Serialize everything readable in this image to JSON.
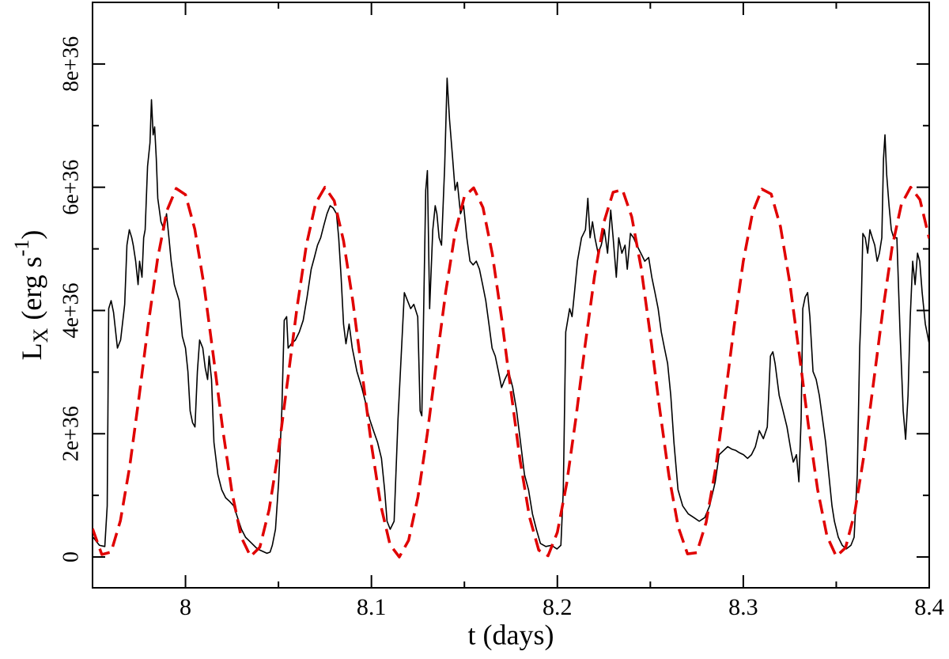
{
  "chart_data": {
    "type": "line",
    "xlabel": "t (days)",
    "ylabel": {
      "text": "L",
      "subscript": "X",
      "unit": "(erg s",
      "superscript": "-1",
      "close": ")"
    },
    "xlim": [
      7.95,
      8.4
    ],
    "xticks": [
      8,
      8.1,
      8.2,
      8.3,
      8.4
    ],
    "xminorticks": [
      8.05,
      8.15,
      8.25,
      8.35
    ],
    "ylim": [
      -5e+35,
      9e+36
    ],
    "yticks": [
      0,
      {
        "value": 2e+36,
        "label": "2e+36"
      },
      {
        "value": 4e+36,
        "label": "4e+36"
      },
      {
        "value": 6e+36,
        "label": "6e+36"
      },
      {
        "value": 8e+36,
        "label": "8e+36"
      }
    ],
    "yminorticks": [
      1e+36,
      3e+36,
      5e+36,
      7e+36
    ],
    "series": [
      {
        "color": "#000000",
        "style": "solid",
        "x": [
          7.9503,
          7.9537,
          7.9566,
          7.9579,
          7.9587,
          7.96,
          7.9613,
          7.9634,
          7.9651,
          7.9673,
          7.9685,
          7.9698,
          7.9711,
          7.9719,
          7.9732,
          7.9745,
          7.9753,
          7.9766,
          7.9775,
          7.9783,
          7.9796,
          7.9809,
          7.9817,
          7.9826,
          7.9834,
          7.9843,
          7.9851,
          7.9868,
          7.9885,
          7.9898,
          7.9911,
          7.9923,
          7.994,
          7.9966,
          7.9983,
          8.0,
          8.0013,
          8.0025,
          8.0038,
          8.0051,
          8.0064,
          8.0076,
          8.0093,
          8.0106,
          8.0119,
          8.0127,
          8.014,
          8.0153,
          8.0174,
          8.0195,
          8.0216,
          8.0238,
          8.0259,
          8.028,
          8.0301,
          8.0323,
          8.0357,
          8.0387,
          8.0416,
          8.0438,
          8.0455,
          8.0467,
          8.0484,
          8.0501,
          8.0518,
          8.0531,
          8.0544,
          8.0552,
          8.0569,
          8.0591,
          8.0612,
          8.0633,
          8.0654,
          8.0676,
          8.0693,
          8.071,
          8.0727,
          8.0744,
          8.0761,
          8.0778,
          8.0795,
          8.0812,
          8.0824,
          8.0837,
          8.085,
          8.0863,
          8.088,
          8.0897,
          8.0922,
          8.0948,
          8.0969,
          8.099,
          8.1011,
          8.1033,
          8.1054,
          8.1071,
          8.1084,
          8.1101,
          8.1122,
          8.1143,
          8.116,
          8.1177,
          8.1194,
          8.1211,
          8.1228,
          8.1249,
          8.1262,
          8.1271,
          8.1279,
          8.1292,
          8.1301,
          8.1313,
          8.133,
          8.1343,
          8.1352,
          8.1364,
          8.1377,
          8.1394,
          8.1407,
          8.142,
          8.1437,
          8.145,
          8.1462,
          8.1479,
          8.1496,
          8.1513,
          8.153,
          8.1547,
          8.1564,
          8.1581,
          8.1598,
          8.1615,
          8.1632,
          8.1649,
          8.1666,
          8.1683,
          8.17,
          8.1717,
          8.1738,
          8.176,
          8.1781,
          8.1802,
          8.1823,
          8.1845,
          8.1866,
          8.1887,
          8.1909,
          8.1938,
          8.1968,
          8.1998,
          8.2019,
          8.2032,
          8.2045,
          8.2066,
          8.2079,
          8.2092,
          8.2108,
          8.213,
          8.2151,
          8.2164,
          8.2176,
          8.2189,
          8.2202,
          8.2219,
          8.2236,
          8.2253,
          8.227,
          8.2287,
          8.23,
          8.2317,
          8.233,
          8.2347,
          8.2364,
          8.2376,
          8.2393,
          8.241,
          8.2427,
          8.2449,
          8.247,
          8.2491,
          8.2508,
          8.2525,
          8.2542,
          8.2559,
          8.2576,
          8.2593,
          8.261,
          8.2627,
          8.2649,
          8.2674,
          8.2704,
          8.2734,
          8.2763,
          8.2793,
          8.2819,
          8.2849,
          8.287,
          8.2895,
          8.2916,
          8.2938,
          8.2959,
          8.298,
          8.3001,
          8.3023,
          8.3044,
          8.3065,
          8.3086,
          8.3108,
          8.3129,
          8.3146,
          8.3159,
          8.3171,
          8.3193,
          8.3214,
          8.3235,
          8.3256,
          8.3269,
          8.3286,
          8.3299,
          8.3311,
          8.332,
          8.3333,
          8.3346,
          8.3358,
          8.3375,
          8.3392,
          8.3409,
          8.3426,
          8.3443,
          8.346,
          8.3477,
          8.349,
          8.3511,
          8.3532,
          8.3554,
          8.3579,
          8.3596,
          8.3613,
          8.3626,
          8.3634,
          8.3643,
          8.3656,
          8.3669,
          8.3681,
          8.3694,
          8.3707,
          8.372,
          8.3732,
          8.3745,
          8.3754,
          8.3762,
          8.3771,
          8.3784,
          8.3796,
          8.3809,
          8.3826,
          8.3843,
          8.386,
          8.3873,
          8.3886,
          8.3898,
          8.3911,
          8.3924,
          8.3937,
          8.3949,
          8.3962,
          8.3979,
          8.4
        ],
        "values": [
          3.2e+35,
          1.9e+35,
          1.7e+35,
          8.3e+35,
          4.03e+36,
          4.16e+36,
          3.97e+36,
          3.39e+36,
          3.52e+36,
          4.1e+36,
          5.06e+36,
          5.31e+36,
          5.18e+36,
          5.06e+36,
          4.8e+36,
          4.42e+36,
          4.8e+36,
          4.54e+36,
          5.18e+36,
          5.31e+36,
          6.34e+36,
          6.72e+36,
          7.42e+36,
          6.85e+36,
          6.98e+36,
          6.46e+36,
          5.82e+36,
          5.44e+36,
          5.31e+36,
          5.57e+36,
          5.18e+36,
          4.8e+36,
          4.42e+36,
          4.16e+36,
          3.58e+36,
          3.39e+36,
          3.01e+36,
          2.37e+36,
          2.18e+36,
          2.11e+36,
          3.01e+36,
          3.52e+36,
          3.39e+36,
          3.07e+36,
          2.88e+36,
          3.26e+36,
          2.88e+36,
          1.86e+36,
          1.34e+36,
          1.09e+36,
          9.6e+35,
          9e+35,
          8.3e+35,
          6.4e+35,
          4.5e+35,
          3.2e+35,
          2.2e+35,
          1.3e+35,
          9e+34,
          6e+34,
          8e+34,
          1.9e+35,
          4.5e+35,
          1.22e+36,
          2.37e+36,
          3.84e+36,
          3.9e+36,
          3.39e+36,
          3.46e+36,
          3.52e+36,
          3.65e+36,
          3.84e+36,
          4.22e+36,
          4.67e+36,
          4.86e+36,
          5.06e+36,
          5.18e+36,
          5.38e+36,
          5.57e+36,
          5.7e+36,
          5.66e+36,
          5.57e+36,
          5.18e+36,
          4.54e+36,
          3.78e+36,
          3.46e+36,
          3.78e+36,
          3.39e+36,
          3.01e+36,
          2.75e+36,
          2.5e+36,
          2.24e+36,
          2.05e+36,
          1.86e+36,
          1.6e+36,
          1.09e+36,
          5.8e+35,
          4.5e+35,
          5.8e+35,
          2.24e+36,
          3.26e+36,
          4.29e+36,
          4.16e+36,
          4.03e+36,
          4.1e+36,
          3.9e+36,
          2.37e+36,
          2.29e+36,
          3.65e+36,
          5.95e+36,
          6.27e+36,
          4.03e+36,
          5.31e+36,
          5.7e+36,
          5.57e+36,
          5.18e+36,
          5.06e+36,
          6.34e+36,
          7.77e+36,
          7.1e+36,
          6.46e+36,
          5.95e+36,
          6.08e+36,
          5.57e+36,
          5.7e+36,
          5.18e+36,
          4.8e+36,
          4.74e+36,
          4.8e+36,
          4.67e+36,
          4.42e+36,
          4.16e+36,
          3.78e+36,
          3.39e+36,
          3.26e+36,
          3.01e+36,
          2.75e+36,
          2.88e+36,
          3.01e+36,
          2.75e+36,
          2.37e+36,
          1.86e+36,
          1.34e+36,
          1.09e+36,
          7e+35,
          4.5e+35,
          2.2e+35,
          1.7e+35,
          1.9e+35,
          1.3e+35,
          1.9e+35,
          1.09e+36,
          3.65e+36,
          4.03e+36,
          3.9e+36,
          4.29e+36,
          4.8e+36,
          5.18e+36,
          5.31e+36,
          5.82e+36,
          5.18e+36,
          5.44e+36,
          5.18e+36,
          4.93e+36,
          5.06e+36,
          5.31e+36,
          4.93e+36,
          5.63e+36,
          5.18e+36,
          4.54e+36,
          5.18e+36,
          4.93e+36,
          5.06e+36,
          4.67e+36,
          5.25e+36,
          5.18e+36,
          5.06e+36,
          4.93e+36,
          4.8e+36,
          4.86e+36,
          4.54e+36,
          4.29e+36,
          4.03e+36,
          3.65e+36,
          3.39e+36,
          3.14e+36,
          2.62e+36,
          1.86e+36,
          1.09e+36,
          8.3e+35,
          7e+35,
          6.4e+35,
          5.8e+35,
          6.4e+35,
          8.3e+35,
          1.22e+36,
          1.66e+36,
          1.73e+36,
          1.79e+36,
          1.75e+36,
          1.73e+36,
          1.69e+36,
          1.66e+36,
          1.6e+36,
          1.66e+36,
          1.79e+36,
          2.05e+36,
          1.92e+36,
          2.11e+36,
          3.26e+36,
          3.33e+36,
          3.14e+36,
          2.62e+36,
          2.37e+36,
          2.11e+36,
          1.73e+36,
          1.54e+36,
          1.66e+36,
          1.22e+36,
          2.24e+36,
          4.03e+36,
          4.22e+36,
          4.29e+36,
          3.9e+36,
          3.01e+36,
          2.88e+36,
          2.62e+36,
          2.24e+36,
          1.86e+36,
          1.34e+36,
          8.3e+35,
          5.8e+35,
          3.2e+35,
          1.9e+35,
          1.3e+35,
          1.9e+35,
          3.2e+35,
          1.34e+36,
          3.39e+36,
          4.03e+36,
          5.25e+36,
          5.18e+36,
          4.93e+36,
          5.31e+36,
          5.18e+36,
          5.06e+36,
          4.8e+36,
          4.93e+36,
          5.18e+36,
          6.46e+36,
          6.85e+36,
          6.21e+36,
          5.7e+36,
          5.31e+36,
          5.18e+36,
          5.18e+36,
          3.65e+36,
          2.37e+36,
          1.91e+36,
          2.62e+36,
          3.9e+36,
          4.8e+36,
          4.42e+36,
          4.93e+36,
          4.8e+36,
          4.29e+36,
          3.78e+36,
          3.46e+36
        ]
      },
      {
        "color": "#e00000",
        "style": "dashed",
        "x": [
          7.95,
          7.955,
          7.96,
          7.965,
          7.97,
          7.975,
          7.98,
          7.985,
          7.99,
          7.995,
          8.0,
          8.005,
          8.01,
          8.015,
          8.02,
          8.025,
          8.03,
          8.035,
          8.04,
          8.045,
          8.05,
          8.055,
          8.06,
          8.065,
          8.07,
          8.075,
          8.08,
          8.085,
          8.09,
          8.095,
          8.1,
          8.105,
          8.11,
          8.115,
          8.12,
          8.125,
          8.13,
          8.135,
          8.14,
          8.145,
          8.15,
          8.155,
          8.16,
          8.165,
          8.17,
          8.175,
          8.18,
          8.185,
          8.19,
          8.195,
          8.2,
          8.205,
          8.21,
          8.215,
          8.22,
          8.225,
          8.23,
          8.235,
          8.24,
          8.245,
          8.25,
          8.255,
          8.26,
          8.265,
          8.27,
          8.275,
          8.28,
          8.285,
          8.29,
          8.295,
          8.3,
          8.305,
          8.31,
          8.315,
          8.32,
          8.325,
          8.33,
          8.335,
          8.34,
          8.345,
          8.35,
          8.355,
          8.36,
          8.365,
          8.37,
          8.375,
          8.38,
          8.385,
          8.39,
          8.395,
          8.4
        ],
        "values": [
          4.6e+35,
          4e+34,
          8e+34,
          5.9e+35,
          1.47e+36,
          2.59e+36,
          3.78e+36,
          4.84e+36,
          5.62e+36,
          5.98e+36,
          5.88e+36,
          5.32e+36,
          4.4e+36,
          3.26e+36,
          2.08e+36,
          1.05e+36,
          3.2e+35,
          1e+34,
          1.6e+35,
          7.7e+35,
          1.72e+36,
          2.88e+36,
          4.05e+36,
          5.06e+36,
          5.74e+36,
          6e+36,
          5.78e+36,
          5.13e+36,
          4.15e+36,
          2.98e+36,
          1.82e+36,
          8.4e+35,
          2e+35,
          0,
          2.7e+35,
          9.7e+35,
          1.99e+36,
          3.16e+36,
          4.31e+36,
          5.26e+36,
          5.85e+36,
          5.99e+36,
          5.67e+36,
          4.92e+36,
          3.88e+36,
          2.7e+36,
          1.56e+36,
          6.5e+35,
          1.1e+35,
          2e+34,
          4e+35,
          1.19e+36,
          2.26e+36,
          3.45e+36,
          4.56e+36,
          5.43e+36,
          5.92e+36,
          5.96e+36,
          5.52e+36,
          4.7e+36,
          3.6e+36,
          2.41e+36,
          1.32e+36,
          4.9e+35,
          5e+34,
          7e+34,
          5.6e+35,
          1.42e+36,
          2.54e+36,
          3.73e+36,
          4.8e+36,
          5.59e+36,
          5.97e+36,
          5.89e+36,
          5.36e+36,
          4.45e+36,
          3.32e+36,
          2.14e+36,
          1.09e+36,
          3.4e+35,
          1e+34,
          1.5e+35,
          7.3e+35,
          1.67e+36,
          2.82e+36,
          3.99e+36,
          5.02e+36,
          5.72e+36,
          6e+36,
          5.8e+36,
          5.17e+36
        ]
      }
    ]
  }
}
